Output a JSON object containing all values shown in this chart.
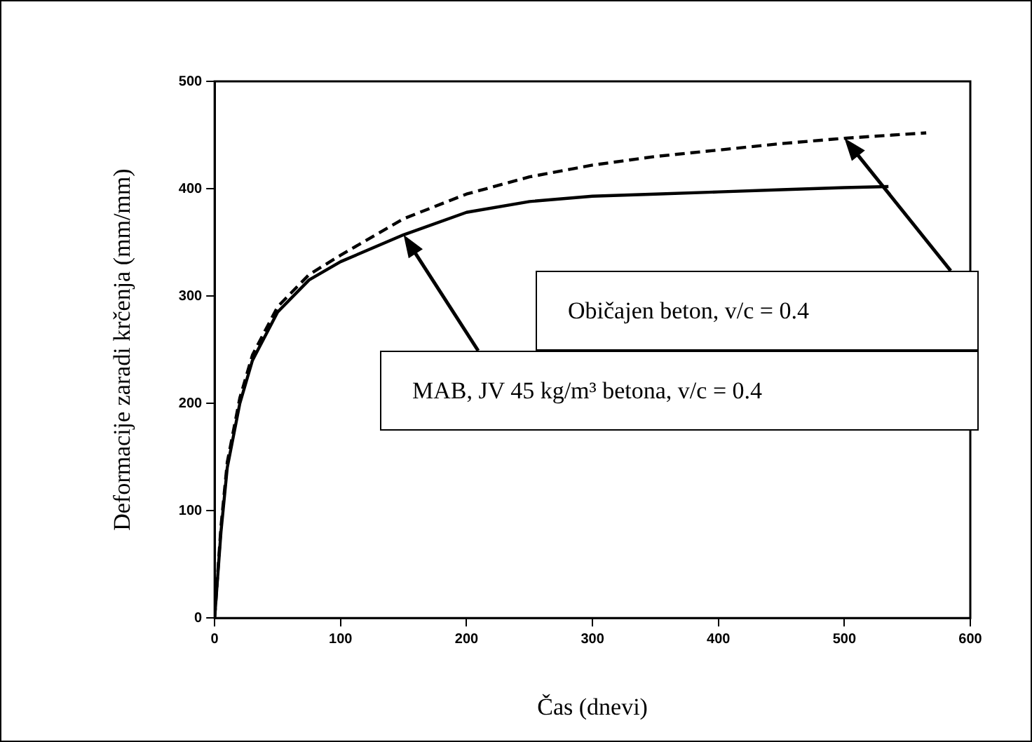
{
  "chart_data": {
    "type": "line",
    "xlabel": "Čas (dnevi)",
    "ylabel": "Deformacije zaradi krčenja (mm/mm)",
    "xlim": [
      0,
      600
    ],
    "xticks": [
      0,
      100,
      200,
      300,
      400,
      500,
      600
    ],
    "ylim": [
      0,
      500
    ],
    "yticks": [
      0,
      100,
      200,
      300,
      400,
      500
    ],
    "grid": false,
    "legend": false,
    "marker": "none",
    "series": [
      {
        "name": "MAB, JV 45 kg/m³ betona, v/c = 0.4",
        "color": "#000000",
        "line_style": "solid",
        "x": [
          0,
          5,
          10,
          20,
          30,
          50,
          75,
          100,
          150,
          200,
          250,
          300,
          350,
          400,
          450,
          500,
          535
        ],
        "values": [
          0,
          80,
          140,
          200,
          240,
          285,
          315,
          332,
          357,
          378,
          388,
          393,
          395,
          397,
          399,
          401,
          402
        ]
      },
      {
        "name": "Običajen beton, v/c = 0.4",
        "color": "#000000",
        "line_style": "dashed",
        "x": [
          0,
          5,
          10,
          20,
          30,
          50,
          75,
          100,
          150,
          200,
          250,
          300,
          350,
          400,
          450,
          500,
          565
        ],
        "values": [
          0,
          85,
          145,
          205,
          245,
          290,
          320,
          338,
          372,
          395,
          411,
          422,
          430,
          436,
          442,
          447,
          452
        ]
      }
    ]
  }
}
